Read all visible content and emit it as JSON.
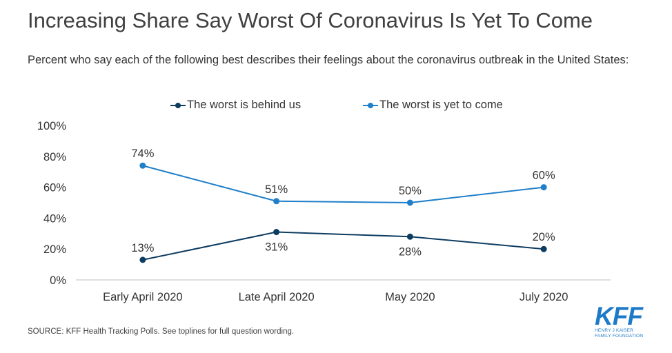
{
  "header": {
    "title": "Increasing Share Say Worst Of Coronavirus Is Yet To Come",
    "subtitle": "Percent who say each of the following best describes their feelings about the coronavirus outbreak in the United States:"
  },
  "colors": {
    "behind": "#0d3c61",
    "yet_to_come": "#1f7fc9",
    "axis": "#bfbfbf",
    "brand": "#1d7ac8"
  },
  "chart_data": {
    "type": "line",
    "categories": [
      "Early April 2020",
      "Late April 2020",
      "May 2020",
      "July 2020"
    ],
    "series": [
      {
        "name": "The worst is behind us",
        "values": [
          13,
          31,
          28,
          20
        ],
        "labels": [
          "13%",
          "31%",
          "28%",
          "20%"
        ]
      },
      {
        "name": "The worst is yet to come",
        "values": [
          74,
          51,
          50,
          60
        ],
        "labels": [
          "74%",
          "51%",
          "50%",
          "60%"
        ]
      }
    ],
    "yticks": [
      "0%",
      "20%",
      "40%",
      "60%",
      "80%",
      "100%"
    ],
    "ylim": [
      0,
      100
    ],
    "grid": false,
    "legend": "top-center"
  },
  "footer": {
    "source": "SOURCE: KFF Health Tracking Polls. See toplines for full question wording."
  },
  "logo": {
    "mark": "KFF",
    "line1": "HENRY J KAISER",
    "line2": "FAMILY FOUNDATION"
  }
}
